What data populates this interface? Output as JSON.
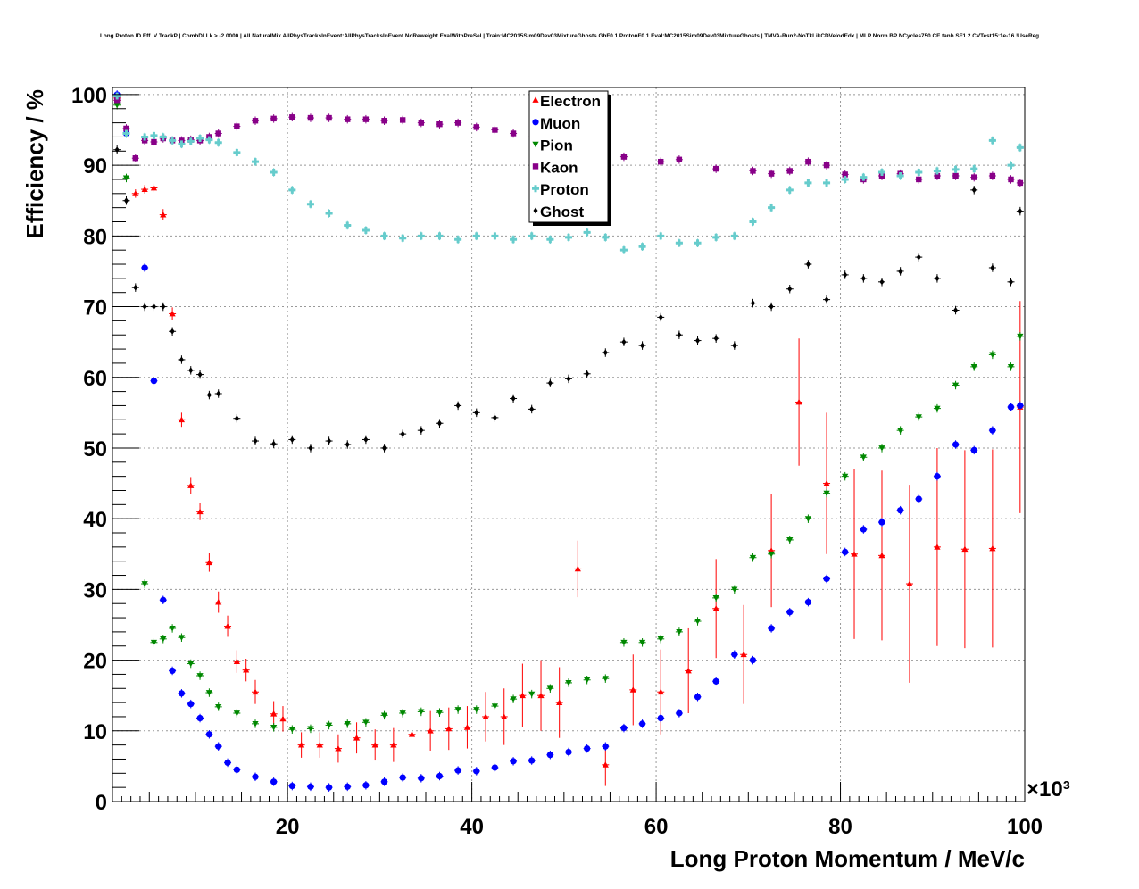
{
  "chart_data": {
    "type": "scatter",
    "title": "Long Proton ID Eff. V TrackP | CombDLLk > -2.0000 | All NaturalMix AllPhysTracksInEvent:AllPhysTracksInEvent NoReweight EvalWithPreSel | Train:MC2015Sim09Dev03MixtureGhosts GhF0.1 ProtonF0.1 Eval:MC2015Sim09Dev03MixtureGhosts | TMVA-Run2-NoTkLikCDVelodEdx | MLP Norm BP NCycles750 CE tanh SF1.2 CVTest15:1e-16 !UseReg",
    "xlabel": "Long Proton Momentum / MeV/c",
    "ylabel": "Efficiency / %",
    "x_multiplier": "×10³",
    "xlim": [
      1,
      100
    ],
    "ylim": [
      0,
      101
    ],
    "x_ticks": [
      20,
      40,
      60,
      80,
      100
    ],
    "y_ticks": [
      0,
      10,
      20,
      30,
      40,
      50,
      60,
      70,
      80,
      90,
      100
    ],
    "grid": true,
    "legend_position": "top-center",
    "series": [
      {
        "name": "Electron",
        "color": "#ff0000",
        "marker": "triangle-up",
        "x": [
          1.5,
          3.5,
          4.5,
          5.5,
          6.5,
          7.5,
          8.5,
          9.5,
          10.5,
          11.5,
          12.5,
          13.5,
          14.5,
          15.5,
          16.5,
          18.5,
          19.5,
          21.5,
          23.5,
          25.5,
          27.5,
          29.5,
          31.5,
          33.5,
          35.5,
          37.5,
          39.5,
          41.5,
          43.5,
          45.5,
          47.5,
          49.5,
          51.5,
          54.5,
          57.5,
          60.5,
          63.5,
          66.5,
          69.5,
          72.5,
          75.5,
          78.5,
          81.5,
          84.5,
          87.5,
          90.5,
          93.5,
          96.5,
          99.5
        ],
        "y": [
          99.5,
          86,
          86.6,
          86.8,
          83,
          69,
          54,
          44.7,
          41,
          33.8,
          28.2,
          24.8,
          19.8,
          18.6,
          15.5,
          12.4,
          11.7,
          8,
          8,
          7.5,
          9,
          8,
          8,
          9.5,
          10,
          10.3,
          10.5,
          12,
          12,
          15,
          15,
          14,
          32.9,
          5.2,
          15.8,
          15.5,
          18.5,
          27.3,
          20.8,
          35.5,
          56.5,
          45,
          35,
          34.8,
          30.8,
          36,
          35.7,
          35.8,
          55.8
        ],
        "yerr": [
          0.5,
          0.6,
          0.6,
          0.6,
          0.8,
          0.9,
          1,
          1.2,
          1.2,
          1.3,
          1.5,
          1.5,
          1.6,
          1.6,
          1.7,
          1.8,
          1.8,
          1.8,
          1.8,
          2,
          2.2,
          2.2,
          2.4,
          2.6,
          2.8,
          3,
          3,
          3.5,
          4,
          4.5,
          5,
          5,
          4,
          3,
          5,
          6,
          6,
          7,
          7,
          8,
          9,
          10,
          12,
          12,
          14,
          14,
          14,
          14,
          15
        ]
      },
      {
        "name": "Muon",
        "color": "#0000ff",
        "marker": "circle",
        "x": [
          1.5,
          2.5,
          4.5,
          5.5,
          6.5,
          7.5,
          8.5,
          9.5,
          10.5,
          11.5,
          12.5,
          13.5,
          14.5,
          16.5,
          18.5,
          20.5,
          22.5,
          24.5,
          26.5,
          28.5,
          30.5,
          32.5,
          34.5,
          36.5,
          38.5,
          40.5,
          42.5,
          44.5,
          46.5,
          48.5,
          50.5,
          52.5,
          54.5,
          56.5,
          58.5,
          60.5,
          62.5,
          64.5,
          66.5,
          68.5,
          70.5,
          72.5,
          74.5,
          76.5,
          78.5,
          80.5,
          82.5,
          84.5,
          86.5,
          88.5,
          90.5,
          92.5,
          94.5,
          96.5,
          98.5,
          99.5
        ],
        "y": [
          100,
          94.5,
          75.5,
          59.5,
          28.5,
          18.5,
          15.3,
          13.8,
          11.8,
          9.5,
          7.8,
          5.5,
          4.5,
          3.5,
          2.8,
          2.2,
          2.1,
          2,
          2.1,
          2.3,
          2.8,
          3.4,
          3.3,
          3.6,
          4.4,
          4.3,
          4.8,
          5.7,
          5.8,
          6.6,
          7,
          7.5,
          7.8,
          10.4,
          11,
          11.8,
          12.5,
          14.8,
          17,
          20.8,
          20,
          24.5,
          26.8,
          28.2,
          31.5,
          35.3,
          38.5,
          39.5,
          41.2,
          42.8,
          46,
          50.5,
          49.7,
          52.5,
          55.8,
          56
        ]
      },
      {
        "name": "Pion",
        "color": "#008800",
        "marker": "triangle-down",
        "x": [
          1.5,
          2.5,
          4.5,
          5.5,
          6.5,
          7.5,
          8.5,
          9.5,
          10.5,
          11.5,
          12.5,
          14.5,
          16.5,
          18.5,
          20.5,
          22.5,
          24.5,
          26.5,
          28.5,
          30.5,
          32.5,
          34.5,
          36.5,
          38.5,
          40.5,
          42.5,
          44.5,
          46.5,
          48.5,
          50.5,
          52.5,
          54.5,
          56.5,
          58.5,
          60.5,
          62.5,
          64.5,
          66.5,
          68.5,
          70.5,
          72.5,
          74.5,
          76.5,
          78.5,
          80.5,
          82.5,
          84.5,
          86.5,
          88.5,
          90.5,
          92.5,
          94.5,
          96.5,
          98.5,
          99.5
        ],
        "y": [
          98.5,
          88.2,
          30.8,
          22.5,
          23,
          24.5,
          23.2,
          19.5,
          17.8,
          15.4,
          13.4,
          12.5,
          11,
          10.5,
          10.2,
          10.3,
          10.8,
          11,
          11.2,
          12.2,
          12.5,
          12.7,
          12.6,
          13,
          13,
          13.5,
          14.5,
          15.2,
          16,
          16.8,
          17.2,
          17.4,
          22.5,
          22.5,
          23,
          24,
          25.5,
          28.8,
          30,
          34.5,
          35,
          37,
          40,
          43.6,
          46,
          48.7,
          50,
          52.5,
          54.4,
          55.6,
          58.9,
          61.5,
          63.2,
          61.5,
          65.8
        ]
      },
      {
        "name": "Kaon",
        "color": "#880088",
        "marker": "square",
        "x": [
          1.5,
          2.5,
          3.5,
          4.5,
          5.5,
          6.5,
          7.5,
          8.5,
          9.5,
          10.5,
          11.5,
          12.5,
          14.5,
          16.5,
          18.5,
          20.5,
          22.5,
          24.5,
          26.5,
          28.5,
          30.5,
          32.5,
          34.5,
          36.5,
          38.5,
          40.5,
          42.5,
          44.5,
          46.5,
          48.5,
          52.5,
          56.5,
          60.5,
          62.5,
          66.5,
          70.5,
          72.5,
          74.5,
          76.5,
          78.5,
          80.5,
          82.5,
          84.5,
          86.5,
          88.5,
          90.5,
          92.5,
          94.5,
          96.5,
          98.5,
          99.5
        ],
        "y": [
          99.2,
          95.2,
          91,
          93.5,
          93.3,
          93.8,
          93.5,
          93.5,
          93.6,
          93.5,
          94,
          94.5,
          95.5,
          96.3,
          96.6,
          96.8,
          96.7,
          96.7,
          96.5,
          96.5,
          96.3,
          96.4,
          96,
          95.8,
          96,
          95.4,
          95,
          94.5,
          94,
          94.5,
          94,
          91.2,
          90.5,
          90.8,
          89.5,
          89.2,
          88.8,
          89.2,
          90.5,
          90,
          88.7,
          88,
          88.5,
          88.8,
          88,
          88.5,
          88.5,
          88.3,
          88.5,
          88,
          87.5
        ]
      },
      {
        "name": "Proton",
        "color": "#66cccc",
        "marker": "cross",
        "x": [
          1.5,
          2.5,
          4.5,
          5.5,
          6.5,
          7.5,
          8.5,
          9.5,
          10.5,
          11.5,
          12.5,
          14.5,
          16.5,
          18.5,
          20.5,
          22.5,
          24.5,
          26.5,
          28.5,
          30.5,
          32.5,
          34.5,
          36.5,
          38.5,
          40.5,
          42.5,
          44.5,
          46.5,
          48.5,
          50.5,
          52.5,
          54.5,
          56.5,
          58.5,
          60.5,
          62.5,
          64.5,
          66.5,
          68.5,
          70.5,
          72.5,
          74.5,
          76.5,
          78.5,
          80.5,
          82.5,
          84.5,
          86.5,
          88.5,
          90.5,
          92.5,
          94.5,
          96.5,
          98.5,
          99.5
        ],
        "y": [
          99.8,
          94.5,
          94,
          94.2,
          94,
          93.5,
          93,
          93.4,
          93.8,
          93.6,
          93.2,
          91.8,
          90.5,
          89,
          86.5,
          84.5,
          83.2,
          81.5,
          80.8,
          80,
          79.7,
          80,
          80,
          79.5,
          80,
          80,
          79.5,
          80,
          79.5,
          79.8,
          80.5,
          79.8,
          78,
          78.5,
          80,
          79,
          79,
          79.8,
          80,
          82,
          84,
          86.5,
          87.5,
          87.5,
          88,
          88.3,
          89,
          88.5,
          89,
          89.2,
          89.4,
          89.5,
          93.5,
          90,
          92.5
        ]
      },
      {
        "name": "Ghost",
        "color": "#000000",
        "marker": "diamond",
        "x": [
          1.5,
          2.5,
          3.5,
          4.5,
          5.5,
          6.5,
          7.5,
          8.5,
          9.5,
          10.5,
          11.5,
          12.5,
          14.5,
          16.5,
          18.5,
          20.5,
          22.5,
          24.5,
          26.5,
          28.5,
          30.5,
          32.5,
          34.5,
          36.5,
          38.5,
          40.5,
          42.5,
          44.5,
          46.5,
          48.5,
          50.5,
          52.5,
          54.5,
          56.5,
          58.5,
          60.5,
          62.5,
          64.5,
          66.5,
          68.5,
          70.5,
          72.5,
          74.5,
          76.5,
          78.5,
          80.5,
          82.5,
          84.5,
          86.5,
          88.5,
          90.5,
          92.5,
          94.5,
          96.5,
          98.5,
          99.5
        ],
        "y": [
          92.2,
          85,
          72.7,
          70,
          70,
          70,
          66.5,
          62.5,
          61,
          60.4,
          57.5,
          57.7,
          54.2,
          51,
          50.6,
          51.2,
          50,
          51,
          50.5,
          51.2,
          50,
          52,
          52.5,
          53.5,
          56,
          55,
          54.3,
          57,
          55.5,
          59.2,
          59.8,
          60.5,
          63.5,
          65,
          64.5,
          68.5,
          66,
          65.2,
          65.5,
          64.5,
          70.5,
          70,
          72.5,
          76,
          71,
          74.5,
          74,
          73.5,
          75,
          77,
          74,
          69.5,
          86.5,
          75.5,
          73.5,
          83.5
        ]
      }
    ]
  }
}
